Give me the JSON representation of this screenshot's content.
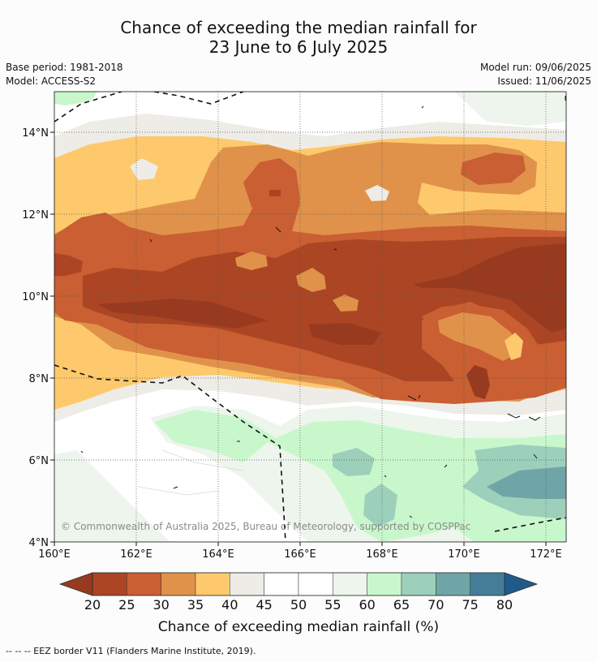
{
  "title_line1": "Chance of exceeding the median rainfall for",
  "title_line2": "23 June to 6 July 2025",
  "base_period": "Base period: 1981-2018",
  "model": "Model: ACCESS-S2",
  "model_run": "Model run: 09/06/2025",
  "issued": "Issued: 11/06/2025",
  "copyright": "© Commonwealth of Australia 2025, Bureau of Meteorology, supported by COSPPac",
  "footnote": "--  --  -- EEZ border V11 (Flanders Marine Institute, 2019).",
  "x_ticks": [
    "160°E",
    "162°E",
    "164°E",
    "166°E",
    "168°E",
    "170°E",
    "172°E"
  ],
  "y_ticks": [
    "14°N",
    "12°N",
    "10°N",
    "8°N",
    "6°N",
    "4°N"
  ],
  "colorbar": {
    "title": "Chance of exceeding median rainfall (%)",
    "labels": [
      "20",
      "25",
      "30",
      "35",
      "40",
      "45",
      "50",
      "55",
      "60",
      "65",
      "70",
      "75",
      "80"
    ],
    "colors": [
      "#ab4523",
      "#c95f32",
      "#e0924a",
      "#fdc96c",
      "#eeece6",
      "#ffffff",
      "#ffffff",
      "#edf5ec",
      "#c9f7cc",
      "#9dd0bb",
      "#6fa5a6",
      "#457d99"
    ],
    "under_color": "#973a20",
    "over_color": "#1f5a8a"
  }
}
